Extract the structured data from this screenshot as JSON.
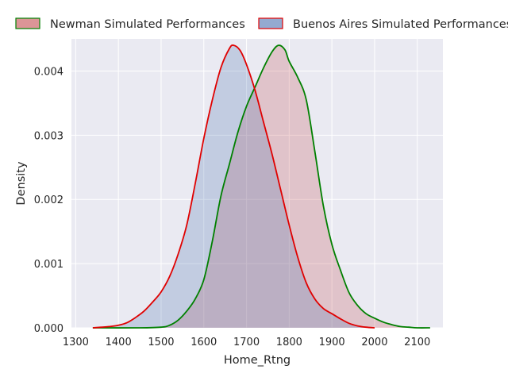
{
  "chart_data": {
    "type": "area",
    "title": "",
    "xlabel": "Home_Rtng",
    "ylabel": "Density",
    "xlim": [
      1320,
      2160
    ],
    "ylim": [
      0,
      0.0045
    ],
    "xticks": [
      1300,
      1400,
      1500,
      1600,
      1700,
      1800,
      1900,
      2000,
      2100
    ],
    "xtick_labels": [
      "1300",
      "1400",
      "1500",
      "1600",
      "1700",
      "1800",
      "1900",
      "2000",
      "2100"
    ],
    "yticks": [
      0,
      0.001,
      0.002,
      0.003,
      0.004
    ],
    "ytick_labels": [
      "0.000",
      "0.001",
      "0.002",
      "0.003",
      "0.004"
    ],
    "grid": true,
    "legend_position": "top",
    "series": [
      {
        "name": "Newman Simulated Performances",
        "line_color": "#008000",
        "fill_color": "#c44e52",
        "fill_opacity": 0.25,
        "points": [
          [
            1340,
            0.0
          ],
          [
            1450,
            0.0
          ],
          [
            1500,
            1e-05
          ],
          [
            1520,
            4e-05
          ],
          [
            1540,
            0.00012
          ],
          [
            1560,
            0.00026
          ],
          [
            1580,
            0.00045
          ],
          [
            1600,
            0.00075
          ],
          [
            1620,
            0.00135
          ],
          [
            1640,
            0.00205
          ],
          [
            1660,
            0.00255
          ],
          [
            1680,
            0.00305
          ],
          [
            1700,
            0.00345
          ],
          [
            1720,
            0.00375
          ],
          [
            1740,
            0.00405
          ],
          [
            1760,
            0.0043
          ],
          [
            1775,
            0.0044
          ],
          [
            1790,
            0.00433
          ],
          [
            1800,
            0.00415
          ],
          [
            1820,
            0.0039
          ],
          [
            1840,
            0.00355
          ],
          [
            1860,
            0.00275
          ],
          [
            1880,
            0.0019
          ],
          [
            1900,
            0.0013
          ],
          [
            1920,
            0.0009
          ],
          [
            1940,
            0.00055
          ],
          [
            1960,
            0.00035
          ],
          [
            1980,
            0.00022
          ],
          [
            2000,
            0.00015
          ],
          [
            2020,
            9e-05
          ],
          [
            2040,
            5e-05
          ],
          [
            2060,
            2e-05
          ],
          [
            2080,
            1e-05
          ],
          [
            2100,
            0.0
          ],
          [
            2130,
            0.0
          ]
        ]
      },
      {
        "name": "Buenos Aires Simulated Performances",
        "line_color": "#e00000",
        "fill_color": "#4c72b0",
        "fill_opacity": 0.25,
        "points": [
          [
            1340,
            0.0
          ],
          [
            1380,
            2e-05
          ],
          [
            1400,
            4e-05
          ],
          [
            1420,
            8e-05
          ],
          [
            1440,
            0.00016
          ],
          [
            1460,
            0.00026
          ],
          [
            1480,
            0.0004
          ],
          [
            1500,
            0.00056
          ],
          [
            1520,
            0.0008
          ],
          [
            1540,
            0.00115
          ],
          [
            1560,
            0.0016
          ],
          [
            1580,
            0.00225
          ],
          [
            1600,
            0.00295
          ],
          [
            1620,
            0.00355
          ],
          [
            1640,
            0.00405
          ],
          [
            1660,
            0.00435
          ],
          [
            1670,
            0.0044
          ],
          [
            1685,
            0.00432
          ],
          [
            1700,
            0.0041
          ],
          [
            1720,
            0.0037
          ],
          [
            1740,
            0.0032
          ],
          [
            1760,
            0.0027
          ],
          [
            1780,
            0.00215
          ],
          [
            1800,
            0.0016
          ],
          [
            1820,
            0.0011
          ],
          [
            1840,
            0.0007
          ],
          [
            1860,
            0.00045
          ],
          [
            1880,
            0.0003
          ],
          [
            1900,
            0.00022
          ],
          [
            1920,
            0.00014
          ],
          [
            1940,
            7e-05
          ],
          [
            1960,
            3e-05
          ],
          [
            1980,
            1e-05
          ],
          [
            2000,
            0.0
          ]
        ]
      }
    ]
  }
}
